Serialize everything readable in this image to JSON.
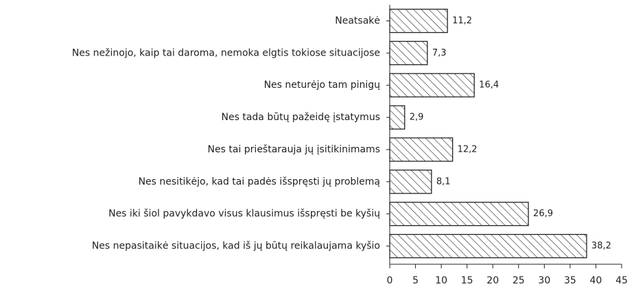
{
  "chart_data": {
    "type": "barh",
    "categories": [
      "Neatsakė",
      "Nes nežinojo, kaip tai daroma, nemoka elgtis tokiose situacijose",
      "Nes neturėjo tam pinigų",
      "Nes tada būtų pažeidę įstatymus",
      "Nes tai prieštarauja jų įsitikinimams",
      "Nes nesitikėjo, kad tai padės išspręsti jų problemą",
      "Nes iki šiol pavykdavo visus klausimus išspręsti be kyšių",
      "Nes nepasitaikė situacijos, kad iš jų būtų reikalaujama kyšio"
    ],
    "values": [
      11.2,
      7.3,
      16.4,
      2.9,
      12.2,
      8.1,
      26.9,
      38.2
    ],
    "value_labels": [
      "11,2",
      "7,3",
      "16,4",
      "2,9",
      "12,2",
      "8,1",
      "26,9",
      "38,2"
    ],
    "color": "#222222",
    "xlim": [
      0,
      45
    ],
    "xticks": [
      0,
      5,
      10,
      15,
      20,
      25,
      30,
      35,
      40,
      45
    ]
  }
}
